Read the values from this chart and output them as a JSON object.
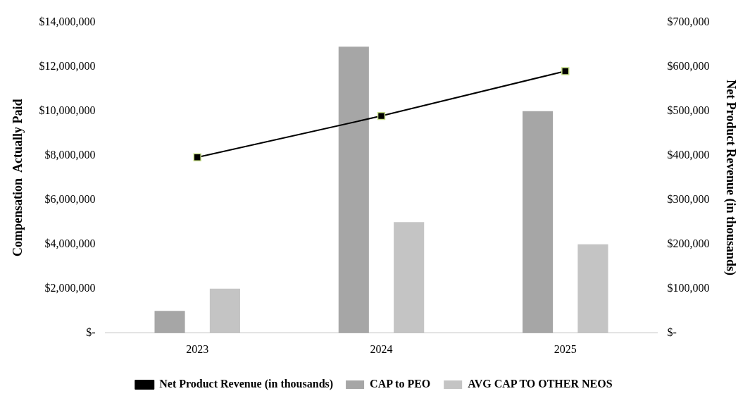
{
  "chart_data": {
    "type": "bar",
    "categories": [
      "2023",
      "2024",
      "2025"
    ],
    "ylabel": "Compensation  Actually Paid",
    "y2label": "Net Product Revenue (in thousands)",
    "ylim": [
      0,
      14000000
    ],
    "yticks": [
      {
        "value": 0,
        "label": "$-"
      },
      {
        "value": 2000000,
        "label": "$2,000,000"
      },
      {
        "value": 4000000,
        "label": "$4,000,000"
      },
      {
        "value": 6000000,
        "label": "$6,000,000"
      },
      {
        "value": 8000000,
        "label": "$8,000,000"
      },
      {
        "value": 10000000,
        "label": "$10,000,000"
      },
      {
        "value": 12000000,
        "label": "$12,000,000"
      },
      {
        "value": 14000000,
        "label": "$14,000,000"
      }
    ],
    "y2lim": [
      0,
      700000
    ],
    "y2ticks": [
      {
        "value": 0,
        "label": "$-"
      },
      {
        "value": 100000,
        "label": "$100,000"
      },
      {
        "value": 200000,
        "label": "$200,000"
      },
      {
        "value": 300000,
        "label": "$300,000"
      },
      {
        "value": 400000,
        "label": "$400,000"
      },
      {
        "value": 500000,
        "label": "$500,000"
      },
      {
        "value": 600000,
        "label": "$600,000"
      },
      {
        "value": 700000,
        "label": "$700,000"
      }
    ],
    "series": [
      {
        "name": "CAP to PEO",
        "color": "#a6a6a6",
        "values": [
          1000000,
          12900000,
          10000000
        ]
      },
      {
        "name": "AVG CAP TO OTHER NEOS",
        "color": "#c4c4c4",
        "values": [
          2000000,
          5000000,
          4000000
        ]
      },
      {
        "name": "Net Product Revenue (in thousands)",
        "type": "line",
        "axis": "y2",
        "color": "#000000",
        "values": [
          396000,
          489000,
          590000
        ]
      }
    ],
    "marker": "square",
    "line_style": "solid",
    "grid": false,
    "legend": "bottom"
  }
}
